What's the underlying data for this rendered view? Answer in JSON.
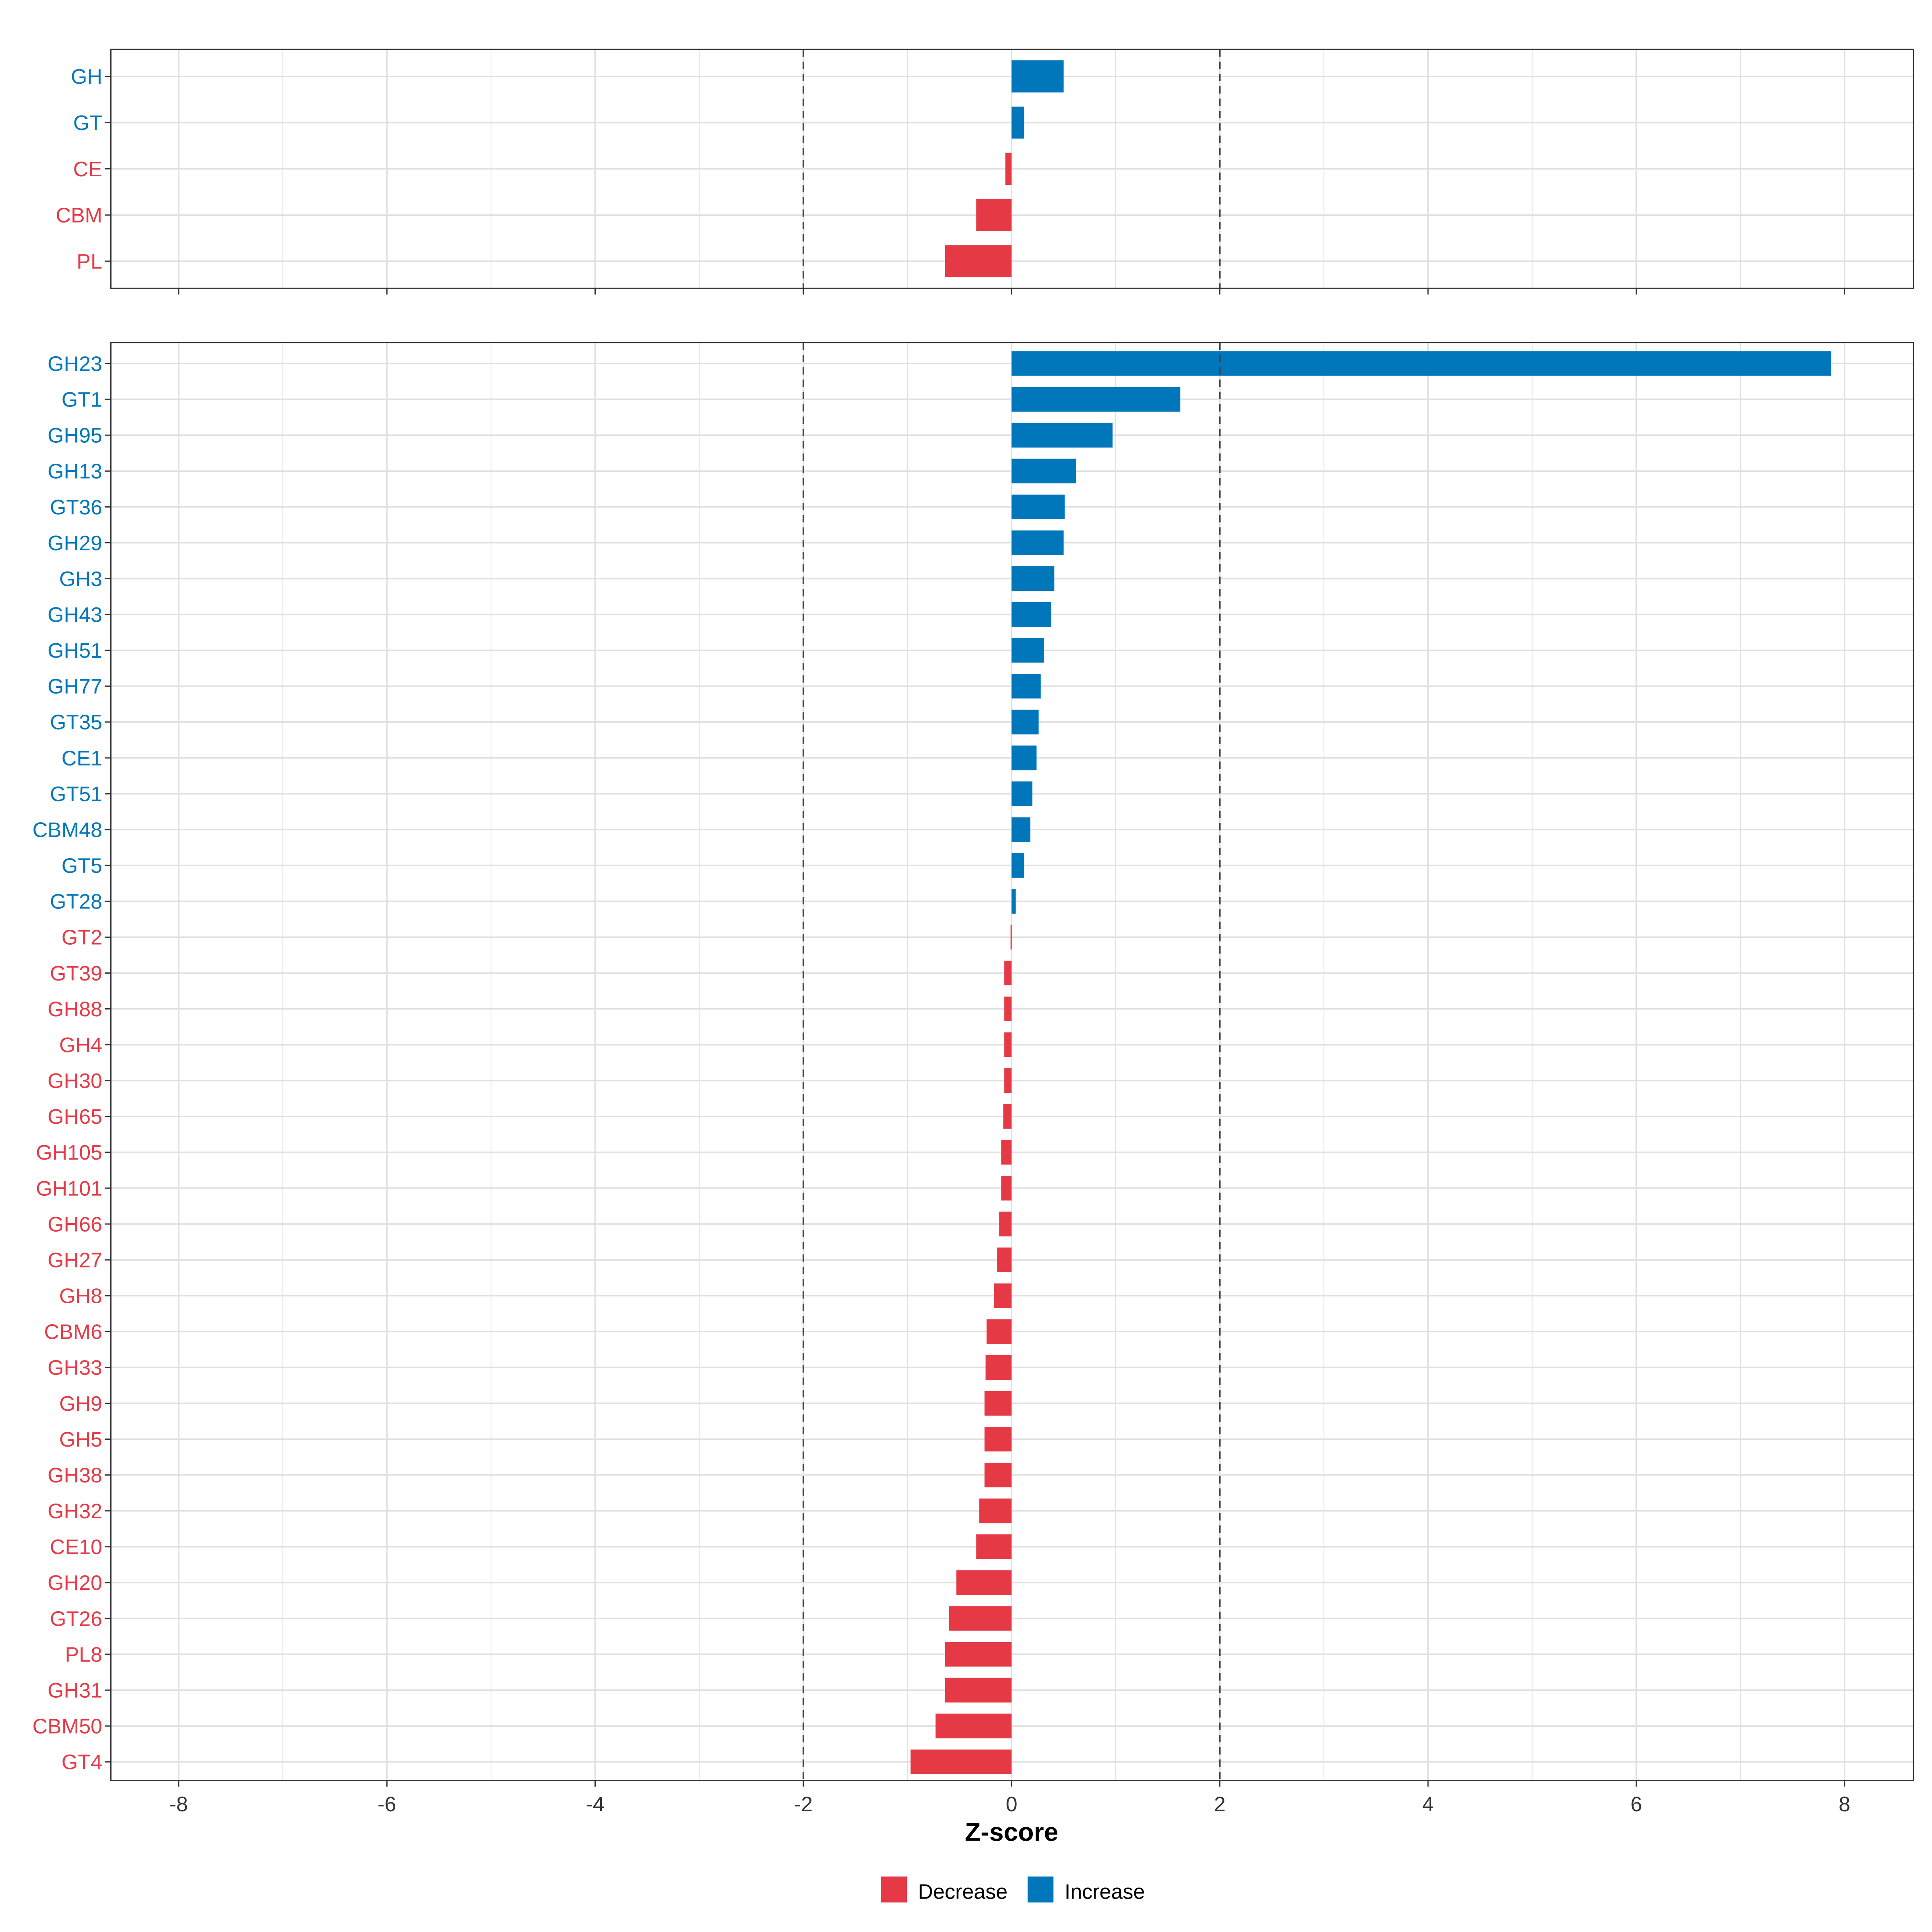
{
  "chart_data": [
    {
      "type": "bar",
      "orientation": "horizontal",
      "panel": "top",
      "categories": [
        "GH",
        "GT",
        "CE",
        "CBM",
        "PL"
      ],
      "values": [
        0.5,
        0.12,
        -0.06,
        -0.34,
        -0.64
      ],
      "xlim": [
        -8.7,
        8.6
      ],
      "reference_lines": [
        -2,
        2
      ],
      "grid": true
    },
    {
      "type": "bar",
      "orientation": "horizontal",
      "panel": "bottom",
      "categories": [
        "GH23",
        "GT1",
        "GH95",
        "GH13",
        "GT36",
        "GH29",
        "GH3",
        "GH43",
        "GH51",
        "GH77",
        "GT35",
        "CE1",
        "GT51",
        "CBM48",
        "GT5",
        "GT28",
        "GT2",
        "GT39",
        "GH88",
        "GH4",
        "GH30",
        "GH65",
        "GH105",
        "GH101",
        "GH66",
        "GH27",
        "GH8",
        "CBM6",
        "GH33",
        "GH9",
        "GH5",
        "GH38",
        "GH32",
        "CE10",
        "GH20",
        "GT26",
        "PL8",
        "GH31",
        "CBM50",
        "GT4"
      ],
      "values": [
        7.87,
        1.62,
        0.97,
        0.62,
        0.51,
        0.5,
        0.41,
        0.38,
        0.31,
        0.28,
        0.26,
        0.24,
        0.2,
        0.18,
        0.12,
        0.04,
        -0.01,
        -0.07,
        -0.07,
        -0.07,
        -0.07,
        -0.08,
        -0.1,
        -0.1,
        -0.12,
        -0.14,
        -0.17,
        -0.24,
        -0.25,
        -0.26,
        -0.26,
        -0.26,
        -0.31,
        -0.34,
        -0.53,
        -0.6,
        -0.64,
        -0.64,
        -0.73,
        -0.97
      ],
      "xlim": [
        -8.7,
        8.6
      ],
      "xticks": [
        "-8",
        "-6",
        "-4",
        "-2",
        "0",
        "2",
        "4",
        "6",
        "8"
      ],
      "xlabel": "Z-score",
      "reference_lines": [
        -2,
        2
      ],
      "grid": true
    }
  ],
  "legend": {
    "position": "bottom",
    "items": [
      {
        "label": "Decrease",
        "color": "#E63946"
      },
      {
        "label": "Increase",
        "color": "#0077BB"
      }
    ]
  }
}
